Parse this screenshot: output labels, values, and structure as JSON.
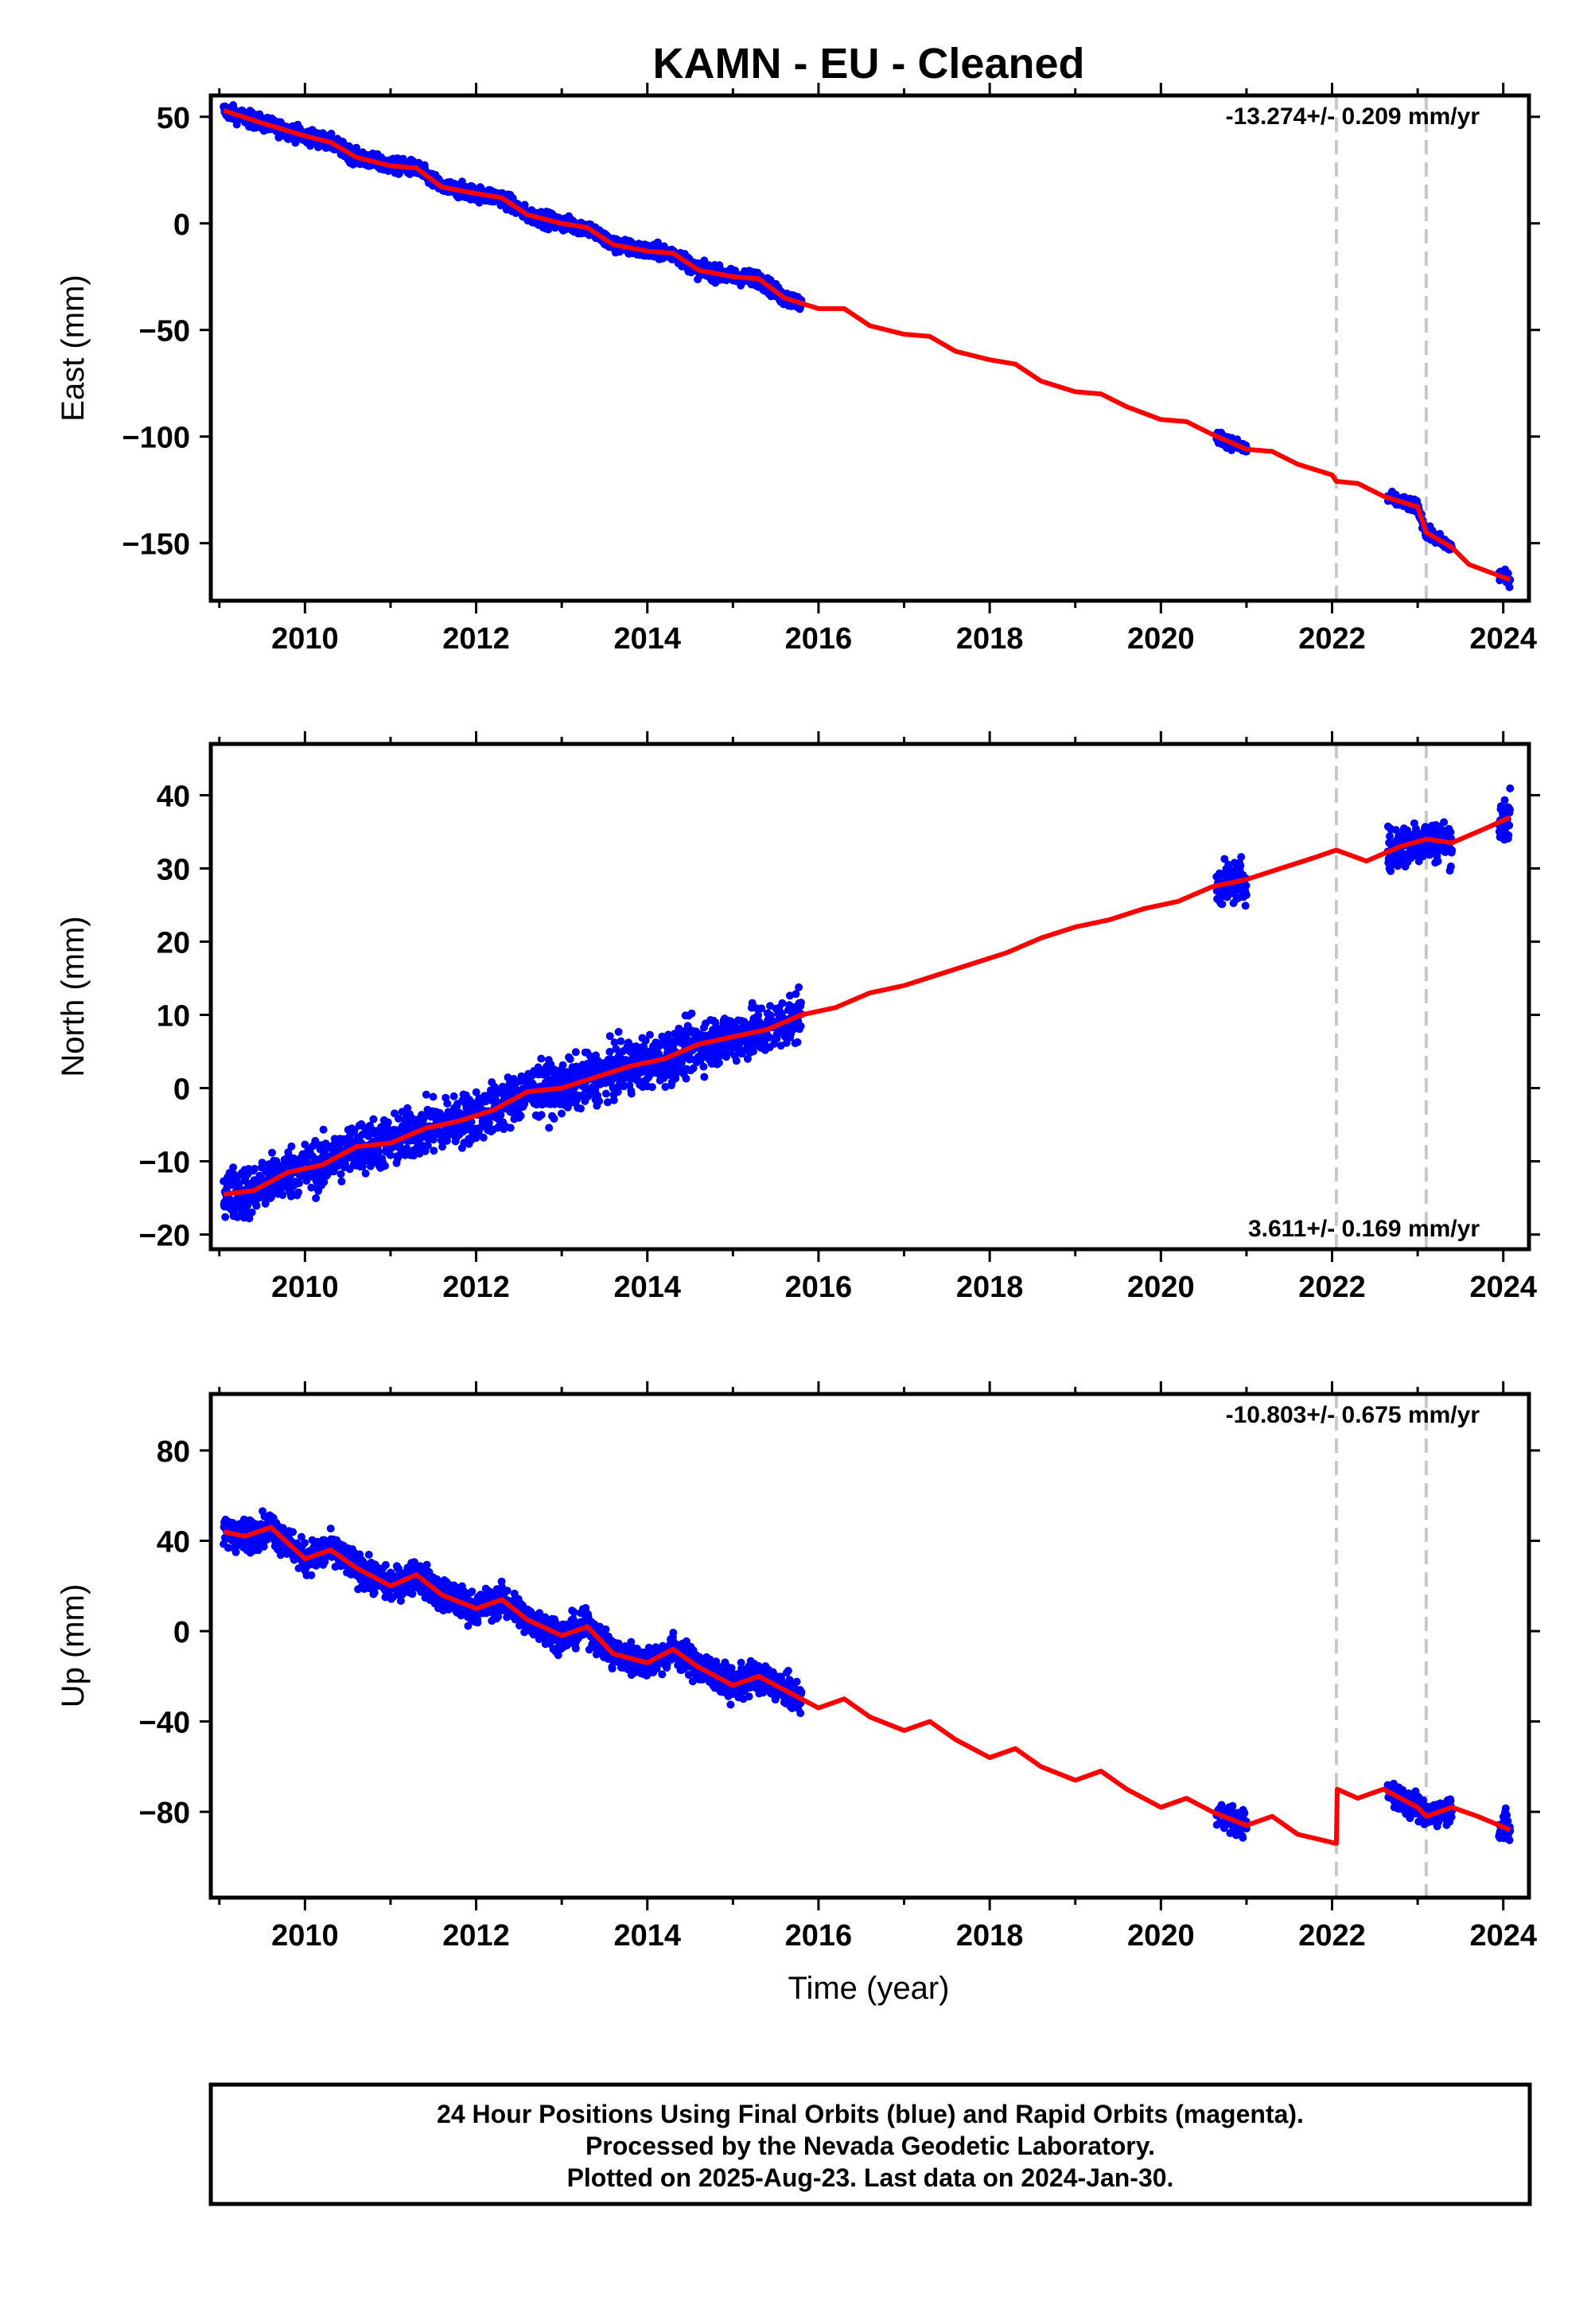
{
  "title": "KAMN  - EU - Cleaned",
  "x_axis_label": "Time (year)",
  "x_ticks": [
    2010,
    2012,
    2014,
    2016,
    2018,
    2020,
    2022,
    2024
  ],
  "x_range": [
    2008.9,
    2024.3
  ],
  "offsets": [
    2022.05,
    2023.1
  ],
  "colors": {
    "data": "#0000ff",
    "model": "#ff0000",
    "offset": "#c8c8c8",
    "axis": "#000000"
  },
  "chart_data": [
    {
      "type": "scatter",
      "panel": "east",
      "ylabel": "East (mm)",
      "ylim": [
        -177,
        60
      ],
      "yticks": [
        50,
        0,
        -50,
        -100,
        -150
      ],
      "rate_label": "-13.274+/- 0.209 mm/yr",
      "series": [
        {
          "name": "model",
          "type": "line",
          "x": [
            2009.05,
            2009.5,
            2010.0,
            2010.3,
            2010.6,
            2011.0,
            2011.3,
            2011.6,
            2012.0,
            2012.3,
            2012.6,
            2013.0,
            2013.3,
            2013.6,
            2014.0,
            2014.3,
            2014.6,
            2015.0,
            2015.3,
            2015.6,
            2016.0,
            2016.3,
            2016.6,
            2017.0,
            2017.3,
            2017.6,
            2018.0,
            2018.3,
            2018.6,
            2019.0,
            2019.3,
            2019.6,
            2020.0,
            2020.3,
            2020.6,
            2021.0,
            2021.3,
            2021.6,
            2022.0,
            2022.05,
            2022.3,
            2022.6,
            2023.0,
            2023.1,
            2023.4,
            2023.6,
            2024.0,
            2024.08
          ],
          "y": [
            53,
            47,
            41,
            38,
            31,
            27,
            26,
            17,
            14,
            12,
            4,
            0,
            -2,
            -10,
            -13,
            -14,
            -22,
            -25,
            -26,
            -35,
            -40,
            -40,
            -48,
            -52,
            -53,
            -60,
            -64,
            -66,
            -74,
            -79,
            -80,
            -86,
            -92,
            -93,
            -99,
            -106,
            -107,
            -113,
            -118,
            -121,
            -122,
            -128,
            -133,
            -145,
            -152,
            -160,
            -166,
            -167
          ]
        },
        {
          "name": "data_segments",
          "type": "scatter",
          "segments": [
            {
              "x0": 2009.05,
              "x1": 2015.8,
              "spread": 2.5
            },
            {
              "x0": 2020.65,
              "x1": 2021.0,
              "spread": 2
            },
            {
              "x0": 2022.65,
              "x1": 2023.1,
              "spread": 2
            },
            {
              "x0": 2023.1,
              "x1": 2023.4,
              "spread": 2
            },
            {
              "x0": 2023.95,
              "x1": 2024.08,
              "spread": 2
            }
          ]
        }
      ]
    },
    {
      "type": "scatter",
      "panel": "north",
      "ylabel": "North (mm)",
      "ylim": [
        -22,
        47
      ],
      "yticks": [
        40,
        30,
        20,
        10,
        0,
        -10,
        -20
      ],
      "rate_label": "3.611+/- 0.169 mm/yr",
      "series": [
        {
          "name": "model",
          "type": "line",
          "x": [
            2009.05,
            2009.4,
            2009.8,
            2010.2,
            2010.6,
            2011.0,
            2011.4,
            2011.8,
            2012.2,
            2012.6,
            2013.0,
            2013.4,
            2013.8,
            2014.2,
            2014.6,
            2015.0,
            2015.4,
            2015.8,
            2016.2,
            2016.6,
            2017.0,
            2017.4,
            2017.8,
            2018.2,
            2018.6,
            2019.0,
            2019.4,
            2019.8,
            2020.2,
            2020.6,
            2021.0,
            2021.4,
            2021.8,
            2022.05,
            2022.4,
            2022.8,
            2023.1,
            2023.4,
            2023.8,
            2024.08
          ],
          "y": [
            -14.5,
            -14,
            -11.5,
            -10.5,
            -8,
            -7.5,
            -5.5,
            -4.5,
            -3,
            -0.5,
            0,
            1.5,
            3,
            4,
            6,
            7,
            8,
            10,
            11,
            13,
            14,
            15.5,
            17,
            18.5,
            20.5,
            22,
            23,
            24.5,
            25.5,
            27.5,
            28.5,
            30,
            31.5,
            32.5,
            31,
            33,
            34,
            33.5,
            35.5,
            37
          ]
        },
        {
          "name": "data_segments",
          "type": "scatter",
          "segments": [
            {
              "x0": 2009.05,
              "x1": 2015.8,
              "spread": 2.5
            },
            {
              "x0": 2020.65,
              "x1": 2021.0,
              "spread": 2
            },
            {
              "x0": 2022.65,
              "x1": 2023.1,
              "spread": 2.2
            },
            {
              "x0": 2023.1,
              "x1": 2023.4,
              "spread": 2
            },
            {
              "x0": 2023.95,
              "x1": 2024.08,
              "spread": 2.5
            }
          ]
        }
      ]
    },
    {
      "type": "scatter",
      "panel": "up",
      "ylabel": "Up (mm)",
      "ylim": [
        -118,
        105
      ],
      "yticks": [
        80,
        40,
        0,
        -40,
        -80
      ],
      "rate_label": "-10.803+/- 0.675 mm/yr",
      "series": [
        {
          "name": "model",
          "type": "line",
          "x": [
            2009.05,
            2009.3,
            2009.6,
            2010.0,
            2010.3,
            2010.6,
            2011.0,
            2011.3,
            2011.6,
            2012.0,
            2012.3,
            2012.6,
            2013.0,
            2013.3,
            2013.6,
            2014.0,
            2014.3,
            2014.6,
            2015.0,
            2015.3,
            2015.6,
            2016.0,
            2016.3,
            2016.6,
            2017.0,
            2017.3,
            2017.6,
            2018.0,
            2018.3,
            2018.6,
            2019.0,
            2019.3,
            2019.6,
            2020.0,
            2020.3,
            2020.6,
            2021.0,
            2021.3,
            2021.6,
            2022.05,
            2022.06,
            2022.3,
            2022.6,
            2023.0,
            2023.1,
            2023.4,
            2023.7,
            2024.08
          ],
          "y": [
            44,
            42,
            46,
            32,
            36,
            28,
            20,
            25,
            16,
            10,
            14,
            5,
            -2,
            2,
            -10,
            -14,
            -8,
            -16,
            -24,
            -20,
            -26,
            -34,
            -30,
            -38,
            -44,
            -40,
            -48,
            -56,
            -52,
            -60,
            -66,
            -62,
            -70,
            -78,
            -74,
            -80,
            -86,
            -82,
            -90,
            -94,
            -70,
            -74,
            -70,
            -78,
            -82,
            -78,
            -82,
            -88
          ]
        },
        {
          "name": "data_segments",
          "type": "scatter",
          "segments": [
            {
              "x0": 2009.05,
              "x1": 2015.8,
              "spread": 5
            },
            {
              "x0": 2020.65,
              "x1": 2021.0,
              "spread": 4
            },
            {
              "x0": 2022.65,
              "x1": 2023.1,
              "spread": 4
            },
            {
              "x0": 2023.1,
              "x1": 2023.4,
              "spread": 4
            },
            {
              "x0": 2023.95,
              "x1": 2024.08,
              "spread": 5
            }
          ]
        }
      ]
    }
  ],
  "footer": {
    "line1": "24 Hour Positions Using Final Orbits (blue) and Rapid Orbits (magenta).",
    "line2": "Processed by the Nevada Geodetic Laboratory.",
    "line3": "Plotted on 2025-Aug-23. Last data on 2024-Jan-30."
  }
}
